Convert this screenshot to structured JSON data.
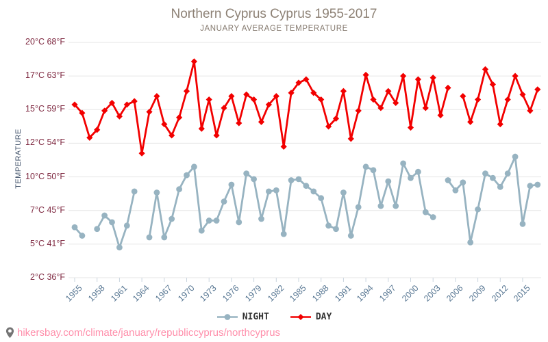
{
  "header": {
    "title": "Northern Cyprus Cyprus 1955-2017",
    "subtitle": "JANUARY AVERAGE TEMPERATURE"
  },
  "y_axis": {
    "title": "TEMPERATURE",
    "ticks": [
      {
        "c": 20,
        "f": 68
      },
      {
        "c": 17,
        "f": 63
      },
      {
        "c": 15,
        "f": 59
      },
      {
        "c": 12,
        "f": 54
      },
      {
        "c": 10,
        "f": 50
      },
      {
        "c": 7,
        "f": 45
      },
      {
        "c": 5,
        "f": 41
      },
      {
        "c": 2,
        "f": 36
      }
    ]
  },
  "x_axis": {
    "tick_years": [
      1955,
      1958,
      1961,
      1964,
      1967,
      1970,
      1973,
      1976,
      1979,
      1982,
      1985,
      1988,
      1991,
      1994,
      1997,
      2000,
      2003,
      2006,
      2009,
      2012,
      2015
    ]
  },
  "legend": [
    {
      "label": "NIGHT",
      "marker": "circle",
      "color": "#97b3c1"
    },
    {
      "label": "DAY",
      "marker": "diamond",
      "color": "#f20000"
    }
  ],
  "footer": {
    "url": "hikersbay.com/climate/january/republiccyprus/northcyprus"
  },
  "colors": {
    "night": "#97b3c1",
    "day": "#f20000",
    "grid": "#e6e6e6",
    "x_tick": "#c9d4de",
    "pin": "#757575"
  },
  "chart_data": {
    "type": "line",
    "title": "Northern Cyprus Cyprus 1955-2017",
    "subtitle": "JANUARY AVERAGE TEMPERATURE",
    "xlabel": "",
    "ylabel": "TEMPERATURE",
    "y_unit": "°C",
    "ylim": [
      2,
      20
    ],
    "grid": true,
    "legend_position": "bottom",
    "x": [
      1955,
      1956,
      1957,
      1958,
      1959,
      1960,
      1961,
      1962,
      1963,
      1964,
      1965,
      1966,
      1967,
      1968,
      1969,
      1970,
      1971,
      1972,
      1973,
      1974,
      1975,
      1976,
      1977,
      1978,
      1979,
      1980,
      1981,
      1982,
      1983,
      1984,
      1985,
      1986,
      1987,
      1988,
      1989,
      1990,
      1991,
      1992,
      1993,
      1994,
      1995,
      1996,
      1997,
      1998,
      1999,
      2000,
      2001,
      2002,
      2003,
      2004,
      2005,
      2006,
      2007,
      2008,
      2009,
      2010,
      2011,
      2012,
      2013,
      2014,
      2015,
      2016,
      2017
    ],
    "series": [
      {
        "name": "NIGHT",
        "color": "#97b3c1",
        "marker": "circle",
        "values": [
          6.0,
          5.5,
          null,
          5.9,
          6.7,
          6.3,
          4.7,
          6.1,
          8.7,
          null,
          5.4,
          8.6,
          5.4,
          6.5,
          8.9,
          10.1,
          10.6,
          5.8,
          6.4,
          6.4,
          7.8,
          9.3,
          6.3,
          10.2,
          9.8,
          6.5,
          8.7,
          8.8,
          5.6,
          9.7,
          9.8,
          9.2,
          8.7,
          8.1,
          6.1,
          5.9,
          8.6,
          5.5,
          7.3,
          10.6,
          10.4,
          7.4,
          9.6,
          7.4,
          10.8,
          9.9,
          10.3,
          6.9,
          6.6,
          null,
          9.7,
          8.8,
          9.5,
          5.1,
          7.1,
          10.2,
          9.9,
          9.1,
          10.2,
          11.2,
          6.2,
          9.2,
          9.3
        ]
      },
      {
        "name": "DAY",
        "color": "#f20000",
        "marker": "diamond",
        "values": [
          15.3,
          14.7,
          12.5,
          13.2,
          14.9,
          15.4,
          14.4,
          15.3,
          15.5,
          11.4,
          14.8,
          15.8,
          13.7,
          12.7,
          14.3,
          16.1,
          18.3,
          13.3,
          15.6,
          12.7,
          15.1,
          15.8,
          13.8,
          15.9,
          15.6,
          13.9,
          15.3,
          15.8,
          11.8,
          16.0,
          16.6,
          16.8,
          16.0,
          15.6,
          13.5,
          14.2,
          16.1,
          12.4,
          14.9,
          17.1,
          15.6,
          15.1,
          16.1,
          15.4,
          17.0,
          13.4,
          16.8,
          15.1,
          16.9,
          14.5,
          16.3,
          null,
          15.8,
          13.9,
          15.6,
          17.6,
          16.5,
          13.7,
          15.6,
          17.0,
          15.9,
          14.9,
          16.2
        ]
      }
    ]
  }
}
